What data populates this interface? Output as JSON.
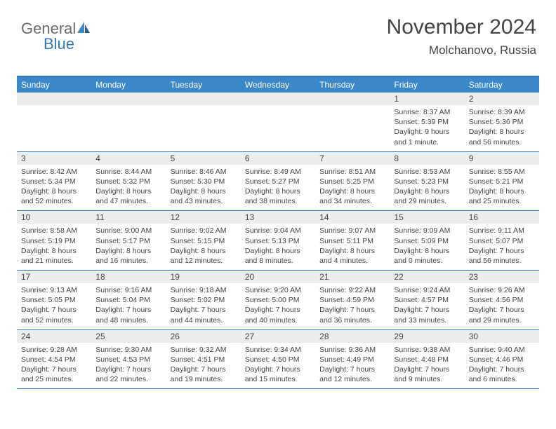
{
  "brand": {
    "word1": "General",
    "word2": "Blue"
  },
  "title": "November 2024",
  "location": "Molchanovo, Russia",
  "colors": {
    "header_bg": "#3b87c8",
    "border": "#3178b5",
    "day_bg": "#eceded",
    "text": "#444444",
    "logo_gray": "#6a6a6a",
    "logo_blue": "#3178b5",
    "page_bg": "#ffffff"
  },
  "fonts": {
    "title_pt": 30,
    "location_pt": 17,
    "header_pt": 12,
    "daynum_pt": 12,
    "info_pt": 10.5
  },
  "day_names": [
    "Sunday",
    "Monday",
    "Tuesday",
    "Wednesday",
    "Thursday",
    "Friday",
    "Saturday"
  ],
  "weeks": [
    [
      {
        "n": "",
        "sr": "",
        "ss": "",
        "dl": ""
      },
      {
        "n": "",
        "sr": "",
        "ss": "",
        "dl": ""
      },
      {
        "n": "",
        "sr": "",
        "ss": "",
        "dl": ""
      },
      {
        "n": "",
        "sr": "",
        "ss": "",
        "dl": ""
      },
      {
        "n": "",
        "sr": "",
        "ss": "",
        "dl": ""
      },
      {
        "n": "1",
        "sr": "Sunrise: 8:37 AM",
        "ss": "Sunset: 5:39 PM",
        "dl": "Daylight: 9 hours and 1 minute."
      },
      {
        "n": "2",
        "sr": "Sunrise: 8:39 AM",
        "ss": "Sunset: 5:36 PM",
        "dl": "Daylight: 8 hours and 56 minutes."
      }
    ],
    [
      {
        "n": "3",
        "sr": "Sunrise: 8:42 AM",
        "ss": "Sunset: 5:34 PM",
        "dl": "Daylight: 8 hours and 52 minutes."
      },
      {
        "n": "4",
        "sr": "Sunrise: 8:44 AM",
        "ss": "Sunset: 5:32 PM",
        "dl": "Daylight: 8 hours and 47 minutes."
      },
      {
        "n": "5",
        "sr": "Sunrise: 8:46 AM",
        "ss": "Sunset: 5:30 PM",
        "dl": "Daylight: 8 hours and 43 minutes."
      },
      {
        "n": "6",
        "sr": "Sunrise: 8:49 AM",
        "ss": "Sunset: 5:27 PM",
        "dl": "Daylight: 8 hours and 38 minutes."
      },
      {
        "n": "7",
        "sr": "Sunrise: 8:51 AM",
        "ss": "Sunset: 5:25 PM",
        "dl": "Daylight: 8 hours and 34 minutes."
      },
      {
        "n": "8",
        "sr": "Sunrise: 8:53 AM",
        "ss": "Sunset: 5:23 PM",
        "dl": "Daylight: 8 hours and 29 minutes."
      },
      {
        "n": "9",
        "sr": "Sunrise: 8:55 AM",
        "ss": "Sunset: 5:21 PM",
        "dl": "Daylight: 8 hours and 25 minutes."
      }
    ],
    [
      {
        "n": "10",
        "sr": "Sunrise: 8:58 AM",
        "ss": "Sunset: 5:19 PM",
        "dl": "Daylight: 8 hours and 21 minutes."
      },
      {
        "n": "11",
        "sr": "Sunrise: 9:00 AM",
        "ss": "Sunset: 5:17 PM",
        "dl": "Daylight: 8 hours and 16 minutes."
      },
      {
        "n": "12",
        "sr": "Sunrise: 9:02 AM",
        "ss": "Sunset: 5:15 PM",
        "dl": "Daylight: 8 hours and 12 minutes."
      },
      {
        "n": "13",
        "sr": "Sunrise: 9:04 AM",
        "ss": "Sunset: 5:13 PM",
        "dl": "Daylight: 8 hours and 8 minutes."
      },
      {
        "n": "14",
        "sr": "Sunrise: 9:07 AM",
        "ss": "Sunset: 5:11 PM",
        "dl": "Daylight: 8 hours and 4 minutes."
      },
      {
        "n": "15",
        "sr": "Sunrise: 9:09 AM",
        "ss": "Sunset: 5:09 PM",
        "dl": "Daylight: 8 hours and 0 minutes."
      },
      {
        "n": "16",
        "sr": "Sunrise: 9:11 AM",
        "ss": "Sunset: 5:07 PM",
        "dl": "Daylight: 7 hours and 56 minutes."
      }
    ],
    [
      {
        "n": "17",
        "sr": "Sunrise: 9:13 AM",
        "ss": "Sunset: 5:05 PM",
        "dl": "Daylight: 7 hours and 52 minutes."
      },
      {
        "n": "18",
        "sr": "Sunrise: 9:16 AM",
        "ss": "Sunset: 5:04 PM",
        "dl": "Daylight: 7 hours and 48 minutes."
      },
      {
        "n": "19",
        "sr": "Sunrise: 9:18 AM",
        "ss": "Sunset: 5:02 PM",
        "dl": "Daylight: 7 hours and 44 minutes."
      },
      {
        "n": "20",
        "sr": "Sunrise: 9:20 AM",
        "ss": "Sunset: 5:00 PM",
        "dl": "Daylight: 7 hours and 40 minutes."
      },
      {
        "n": "21",
        "sr": "Sunrise: 9:22 AM",
        "ss": "Sunset: 4:59 PM",
        "dl": "Daylight: 7 hours and 36 minutes."
      },
      {
        "n": "22",
        "sr": "Sunrise: 9:24 AM",
        "ss": "Sunset: 4:57 PM",
        "dl": "Daylight: 7 hours and 33 minutes."
      },
      {
        "n": "23",
        "sr": "Sunrise: 9:26 AM",
        "ss": "Sunset: 4:56 PM",
        "dl": "Daylight: 7 hours and 29 minutes."
      }
    ],
    [
      {
        "n": "24",
        "sr": "Sunrise: 9:28 AM",
        "ss": "Sunset: 4:54 PM",
        "dl": "Daylight: 7 hours and 25 minutes."
      },
      {
        "n": "25",
        "sr": "Sunrise: 9:30 AM",
        "ss": "Sunset: 4:53 PM",
        "dl": "Daylight: 7 hours and 22 minutes."
      },
      {
        "n": "26",
        "sr": "Sunrise: 9:32 AM",
        "ss": "Sunset: 4:51 PM",
        "dl": "Daylight: 7 hours and 19 minutes."
      },
      {
        "n": "27",
        "sr": "Sunrise: 9:34 AM",
        "ss": "Sunset: 4:50 PM",
        "dl": "Daylight: 7 hours and 15 minutes."
      },
      {
        "n": "28",
        "sr": "Sunrise: 9:36 AM",
        "ss": "Sunset: 4:49 PM",
        "dl": "Daylight: 7 hours and 12 minutes."
      },
      {
        "n": "29",
        "sr": "Sunrise: 9:38 AM",
        "ss": "Sunset: 4:48 PM",
        "dl": "Daylight: 7 hours and 9 minutes."
      },
      {
        "n": "30",
        "sr": "Sunrise: 9:40 AM",
        "ss": "Sunset: 4:46 PM",
        "dl": "Daylight: 7 hours and 6 minutes."
      }
    ]
  ]
}
